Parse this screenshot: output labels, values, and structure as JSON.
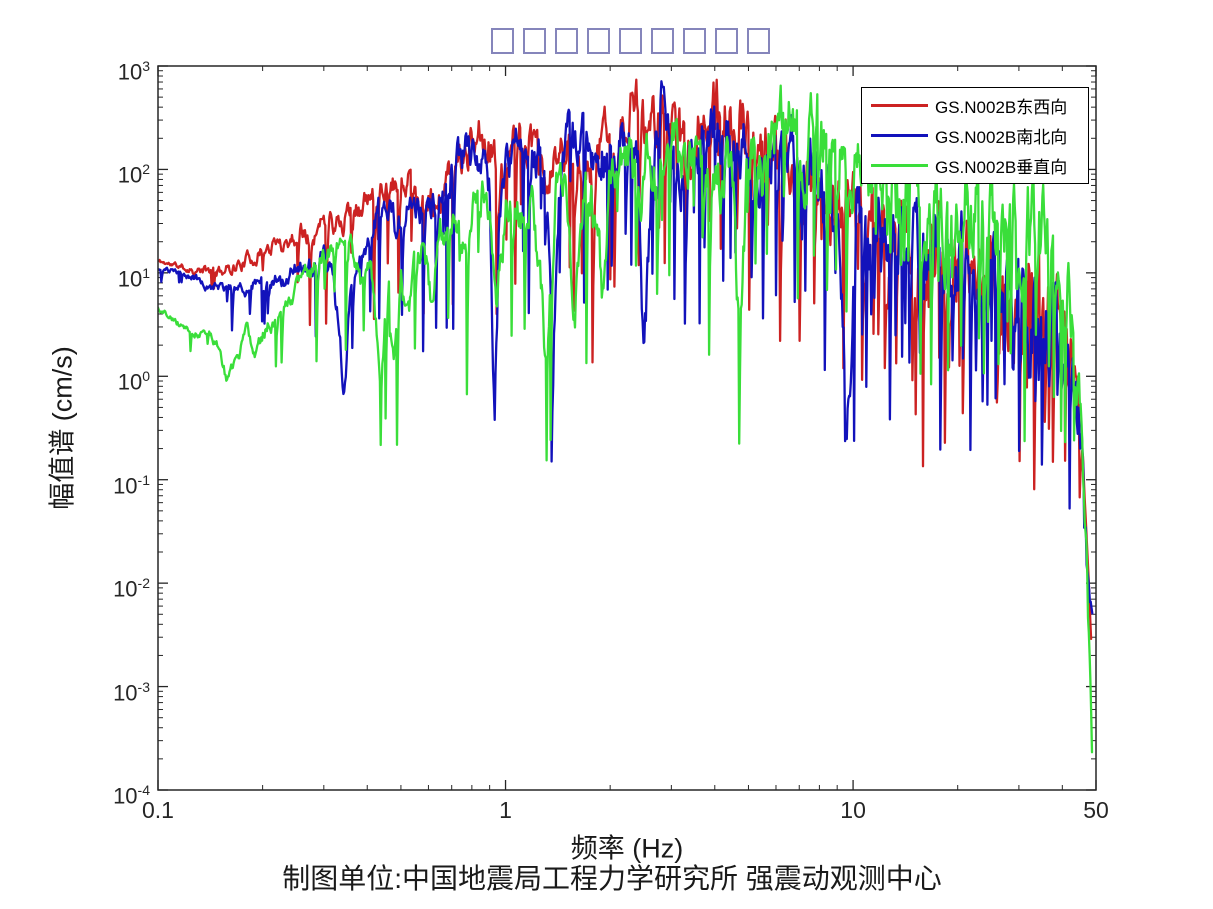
{
  "page": {
    "background": "#ffffff",
    "caption": "制图单位:中国地震局工程力学研究所 强震动观测中心"
  },
  "title": {
    "placeholder_box_count": 9,
    "box_color": "#8585bb"
  },
  "chart_data": {
    "type": "line",
    "xlabel": "频率 (Hz)",
    "ylabel": "幅值谱 (cm/s)",
    "xscale": "log",
    "yscale": "log",
    "xlim": [
      0.1,
      50
    ],
    "ylim": [
      0.0001,
      1000
    ],
    "grid": false,
    "x_ticks": [
      {
        "value": 0.1,
        "label": "0.1"
      },
      {
        "value": 1,
        "label": "1"
      },
      {
        "value": 10,
        "label": "10"
      },
      {
        "value": 50,
        "label": "50"
      }
    ],
    "x_minor_ticks": [
      0.2,
      0.3,
      0.4,
      0.5,
      0.6,
      0.7,
      0.8,
      0.9,
      2,
      3,
      4,
      5,
      6,
      7,
      8,
      9,
      20,
      30,
      40
    ],
    "y_tick_base": "10",
    "y_tick_exponents": [
      3,
      2,
      1,
      0,
      -1,
      -2,
      -3,
      -4
    ],
    "axis_color": "#262626",
    "legend": {
      "position": "top-right",
      "entries": [
        {
          "label": "GS.N002B东西向",
          "color": "#cc2222"
        },
        {
          "label": "GS.N002B南北向",
          "color": "#1212bb"
        },
        {
          "label": "GS.N002B垂直向",
          "color": "#3ade3a"
        }
      ]
    },
    "series": [
      {
        "name": "GS.N002B东西向",
        "color": "#cc2222",
        "seed": 11,
        "anchors": [
          [
            0.1,
            13
          ],
          [
            0.115,
            11.5
          ],
          [
            0.13,
            10.5
          ],
          [
            0.15,
            10.2
          ],
          [
            0.17,
            12
          ],
          [
            0.2,
            16
          ],
          [
            0.23,
            20
          ],
          [
            0.26,
            24
          ],
          [
            0.3,
            28
          ],
          [
            0.34,
            33
          ],
          [
            0.38,
            42
          ],
          [
            0.42,
            55
          ],
          [
            0.46,
            60
          ],
          [
            0.52,
            90
          ],
          [
            0.56,
            48
          ],
          [
            0.6,
            55
          ],
          [
            0.63,
            34
          ],
          [
            0.68,
            75
          ],
          [
            0.72,
            100
          ],
          [
            0.78,
            160
          ],
          [
            0.85,
            270
          ],
          [
            0.9,
            210
          ],
          [
            0.95,
            80
          ],
          [
            1.0,
            120
          ],
          [
            1.05,
            150
          ],
          [
            1.1,
            200
          ],
          [
            1.2,
            160
          ],
          [
            1.3,
            55
          ],
          [
            1.4,
            130
          ],
          [
            1.5,
            180
          ],
          [
            1.6,
            90
          ],
          [
            1.7,
            150
          ],
          [
            1.8,
            60
          ],
          [
            1.9,
            160
          ],
          [
            2.0,
            220
          ],
          [
            2.1,
            150
          ],
          [
            2.3,
            330
          ],
          [
            2.45,
            380
          ],
          [
            2.6,
            230
          ],
          [
            2.75,
            300
          ],
          [
            2.9,
            420
          ],
          [
            3.05,
            180
          ],
          [
            3.2,
            110
          ],
          [
            3.4,
            200
          ],
          [
            3.6,
            280
          ],
          [
            3.8,
            320
          ],
          [
            3.95,
            460
          ],
          [
            4.15,
            430
          ],
          [
            4.4,
            220
          ],
          [
            4.7,
            280
          ],
          [
            5.0,
            180
          ],
          [
            5.4,
            90
          ],
          [
            5.8,
            150
          ],
          [
            6.2,
            80
          ],
          [
            6.7,
            120
          ],
          [
            7.2,
            60
          ],
          [
            7.8,
            90
          ],
          [
            8.4,
            45
          ],
          [
            9.0,
            70
          ],
          [
            9.7,
            35
          ],
          [
            10.5,
            25
          ],
          [
            11.5,
            40
          ],
          [
            12.5,
            18
          ],
          [
            14,
            25
          ],
          [
            15.5,
            12
          ],
          [
            17,
            18
          ],
          [
            19,
            8
          ],
          [
            21,
            12
          ],
          [
            23,
            6
          ],
          [
            25,
            9
          ],
          [
            27,
            5
          ],
          [
            30,
            7
          ],
          [
            33,
            3.5
          ],
          [
            36,
            4.5
          ],
          [
            39,
            2.2
          ],
          [
            42,
            1.5
          ],
          [
            44,
            0.7
          ],
          [
            45.5,
            0.25
          ],
          [
            46.5,
            0.08
          ],
          [
            47.3,
            0.02
          ],
          [
            47.9,
            0.006
          ],
          [
            48.4,
            0.003
          ]
        ]
      },
      {
        "name": "GS.N002B南北向",
        "color": "#1212bb",
        "seed": 23,
        "anchors": [
          [
            0.1,
            11
          ],
          [
            0.12,
            9.5
          ],
          [
            0.14,
            7.8
          ],
          [
            0.16,
            7.0
          ],
          [
            0.18,
            7.5
          ],
          [
            0.21,
            8.5
          ],
          [
            0.24,
            10
          ],
          [
            0.27,
            11.5
          ],
          [
            0.3,
            13
          ],
          [
            0.315,
            9
          ],
          [
            0.33,
            3.5
          ],
          [
            0.342,
            0.8
          ],
          [
            0.355,
            4
          ],
          [
            0.37,
            9
          ],
          [
            0.4,
            21
          ],
          [
            0.43,
            40
          ],
          [
            0.456,
            55
          ],
          [
            0.48,
            30
          ],
          [
            0.52,
            38
          ],
          [
            0.56,
            34
          ],
          [
            0.6,
            50
          ],
          [
            0.64,
            35
          ],
          [
            0.68,
            70
          ],
          [
            0.73,
            110
          ],
          [
            0.78,
            160
          ],
          [
            0.82,
            120
          ],
          [
            0.86,
            140
          ],
          [
            0.9,
            60
          ],
          [
            0.93,
            0.35
          ],
          [
            0.96,
            30
          ],
          [
            1.0,
            90
          ],
          [
            1.05,
            160
          ],
          [
            1.1,
            235
          ],
          [
            1.15,
            180
          ],
          [
            1.22,
            150
          ],
          [
            1.3,
            90
          ],
          [
            1.37,
            2
          ],
          [
            1.45,
            180
          ],
          [
            1.52,
            220
          ],
          [
            1.6,
            150
          ],
          [
            1.7,
            190
          ],
          [
            1.8,
            80
          ],
          [
            1.9,
            150
          ],
          [
            2.0,
            180
          ],
          [
            2.1,
            120
          ],
          [
            2.25,
            240
          ],
          [
            2.4,
            170
          ],
          [
            2.5,
            1.2
          ],
          [
            2.65,
            120
          ],
          [
            2.8,
            280
          ],
          [
            2.95,
            320
          ],
          [
            3.1,
            150
          ],
          [
            3.3,
            90
          ],
          [
            3.5,
            220
          ],
          [
            3.7,
            260
          ],
          [
            3.9,
            180
          ],
          [
            4.1,
            240
          ],
          [
            4.35,
            300
          ],
          [
            4.6,
            220
          ],
          [
            4.9,
            260
          ],
          [
            5.2,
            130
          ],
          [
            5.6,
            180
          ],
          [
            6.0,
            220
          ],
          [
            6.4,
            100
          ],
          [
            6.9,
            140
          ],
          [
            7.4,
            60
          ],
          [
            7.9,
            110
          ],
          [
            8.5,
            50
          ],
          [
            9.1,
            80
          ],
          [
            9.6,
            0.4
          ],
          [
            10.2,
            50
          ],
          [
            11.0,
            30
          ],
          [
            11.8,
            45
          ],
          [
            12.8,
            20
          ],
          [
            14,
            30
          ],
          [
            15.5,
            14
          ],
          [
            17,
            20
          ],
          [
            19,
            9
          ],
          [
            21,
            13
          ],
          [
            23,
            6
          ],
          [
            25,
            9
          ],
          [
            27,
            4.5
          ],
          [
            30,
            6
          ],
          [
            33,
            3
          ],
          [
            36,
            3.8
          ],
          [
            39,
            1.8
          ],
          [
            42,
            1.2
          ],
          [
            44,
            0.6
          ],
          [
            45.5,
            0.2
          ],
          [
            46.5,
            0.06
          ],
          [
            47.3,
            0.015
          ],
          [
            48.0,
            0.006
          ],
          [
            48.8,
            0.005
          ]
        ]
      },
      {
        "name": "GS.N002B垂直向",
        "color": "#3ade3a",
        "seed": 37,
        "anchors": [
          [
            0.1,
            4.6
          ],
          [
            0.115,
            3.2
          ],
          [
            0.13,
            2.6
          ],
          [
            0.14,
            3.1
          ],
          [
            0.15,
            1.8
          ],
          [
            0.158,
            0.88
          ],
          [
            0.17,
            1.6
          ],
          [
            0.18,
            2.6
          ],
          [
            0.19,
            1.9
          ],
          [
            0.21,
            3.2
          ],
          [
            0.24,
            5.5
          ],
          [
            0.27,
            9
          ],
          [
            0.3,
            13
          ],
          [
            0.33,
            17
          ],
          [
            0.36,
            19
          ],
          [
            0.385,
            8
          ],
          [
            0.41,
            12
          ],
          [
            0.435,
            1.0
          ],
          [
            0.46,
            8
          ],
          [
            0.478,
            1.6
          ],
          [
            0.5,
            9
          ],
          [
            0.525,
            3.2
          ],
          [
            0.55,
            14
          ],
          [
            0.58,
            18
          ],
          [
            0.61,
            6
          ],
          [
            0.65,
            22
          ],
          [
            0.7,
            30
          ],
          [
            0.75,
            14
          ],
          [
            0.8,
            40
          ],
          [
            0.85,
            50
          ],
          [
            0.9,
            55
          ],
          [
            0.94,
            3
          ],
          [
            1.0,
            45
          ],
          [
            1.06,
            55
          ],
          [
            1.12,
            35
          ],
          [
            1.2,
            50
          ],
          [
            1.3,
            1.8
          ],
          [
            1.4,
            70
          ],
          [
            1.5,
            55
          ],
          [
            1.58,
            3.5
          ],
          [
            1.7,
            85
          ],
          [
            1.8,
            45
          ],
          [
            1.9,
            6
          ],
          [
            2.0,
            90
          ],
          [
            2.15,
            130
          ],
          [
            2.3,
            100
          ],
          [
            2.45,
            40
          ],
          [
            2.6,
            150
          ],
          [
            2.75,
            60
          ],
          [
            2.96,
            340
          ],
          [
            3.15,
            120
          ],
          [
            3.35,
            90
          ],
          [
            3.55,
            150
          ],
          [
            3.75,
            60
          ],
          [
            4.0,
            140
          ],
          [
            4.25,
            90
          ],
          [
            4.5,
            120
          ],
          [
            4.7,
            2
          ],
          [
            4.95,
            130
          ],
          [
            5.2,
            180
          ],
          [
            5.5,
            80
          ],
          [
            5.8,
            220
          ],
          [
            6.1,
            260
          ],
          [
            6.5,
            290
          ],
          [
            6.9,
            220
          ],
          [
            7.3,
            120
          ],
          [
            7.7,
            230
          ],
          [
            8.2,
            180
          ],
          [
            8.8,
            130
          ],
          [
            9.4,
            160
          ],
          [
            10.0,
            100
          ],
          [
            10.8,
            120
          ],
          [
            11.6,
            80
          ],
          [
            12.5,
            95
          ],
          [
            13.5,
            65
          ],
          [
            14.5,
            80
          ],
          [
            15.5,
            55
          ],
          [
            17,
            65
          ],
          [
            18.5,
            45
          ],
          [
            20,
            55
          ],
          [
            22,
            38
          ],
          [
            24,
            45
          ],
          [
            26,
            30
          ],
          [
            28,
            35
          ],
          [
            30,
            22
          ],
          [
            32,
            28
          ],
          [
            34,
            16
          ],
          [
            36,
            18
          ],
          [
            38,
            10
          ],
          [
            40,
            7
          ],
          [
            42,
            4
          ],
          [
            43.5,
            2
          ],
          [
            44.5,
            0.8
          ],
          [
            45.5,
            0.25
          ],
          [
            46.3,
            0.06
          ],
          [
            47.0,
            0.015
          ],
          [
            47.7,
            0.003
          ],
          [
            48.3,
            0.0008
          ],
          [
            48.7,
            0.0002
          ]
        ]
      }
    ]
  },
  "render": {
    "samples": 1150,
    "noise": {
      "walk_decay": 0.72,
      "walk_step": 0.8,
      "amp_min": 0.04,
      "amp_slope": 0.33,
      "amp_max": 0.95,
      "spike_base": 0.012,
      "spike_slope": 0.05,
      "spike_depth_min": 0.35,
      "spike_depth_rand": 1.3,
      "spike_decay": 0.45,
      "damp_start_hz": 42,
      "damp_min": 0.12,
      "floor_exp": -4,
      "ceil_exp": 2.95
    }
  }
}
